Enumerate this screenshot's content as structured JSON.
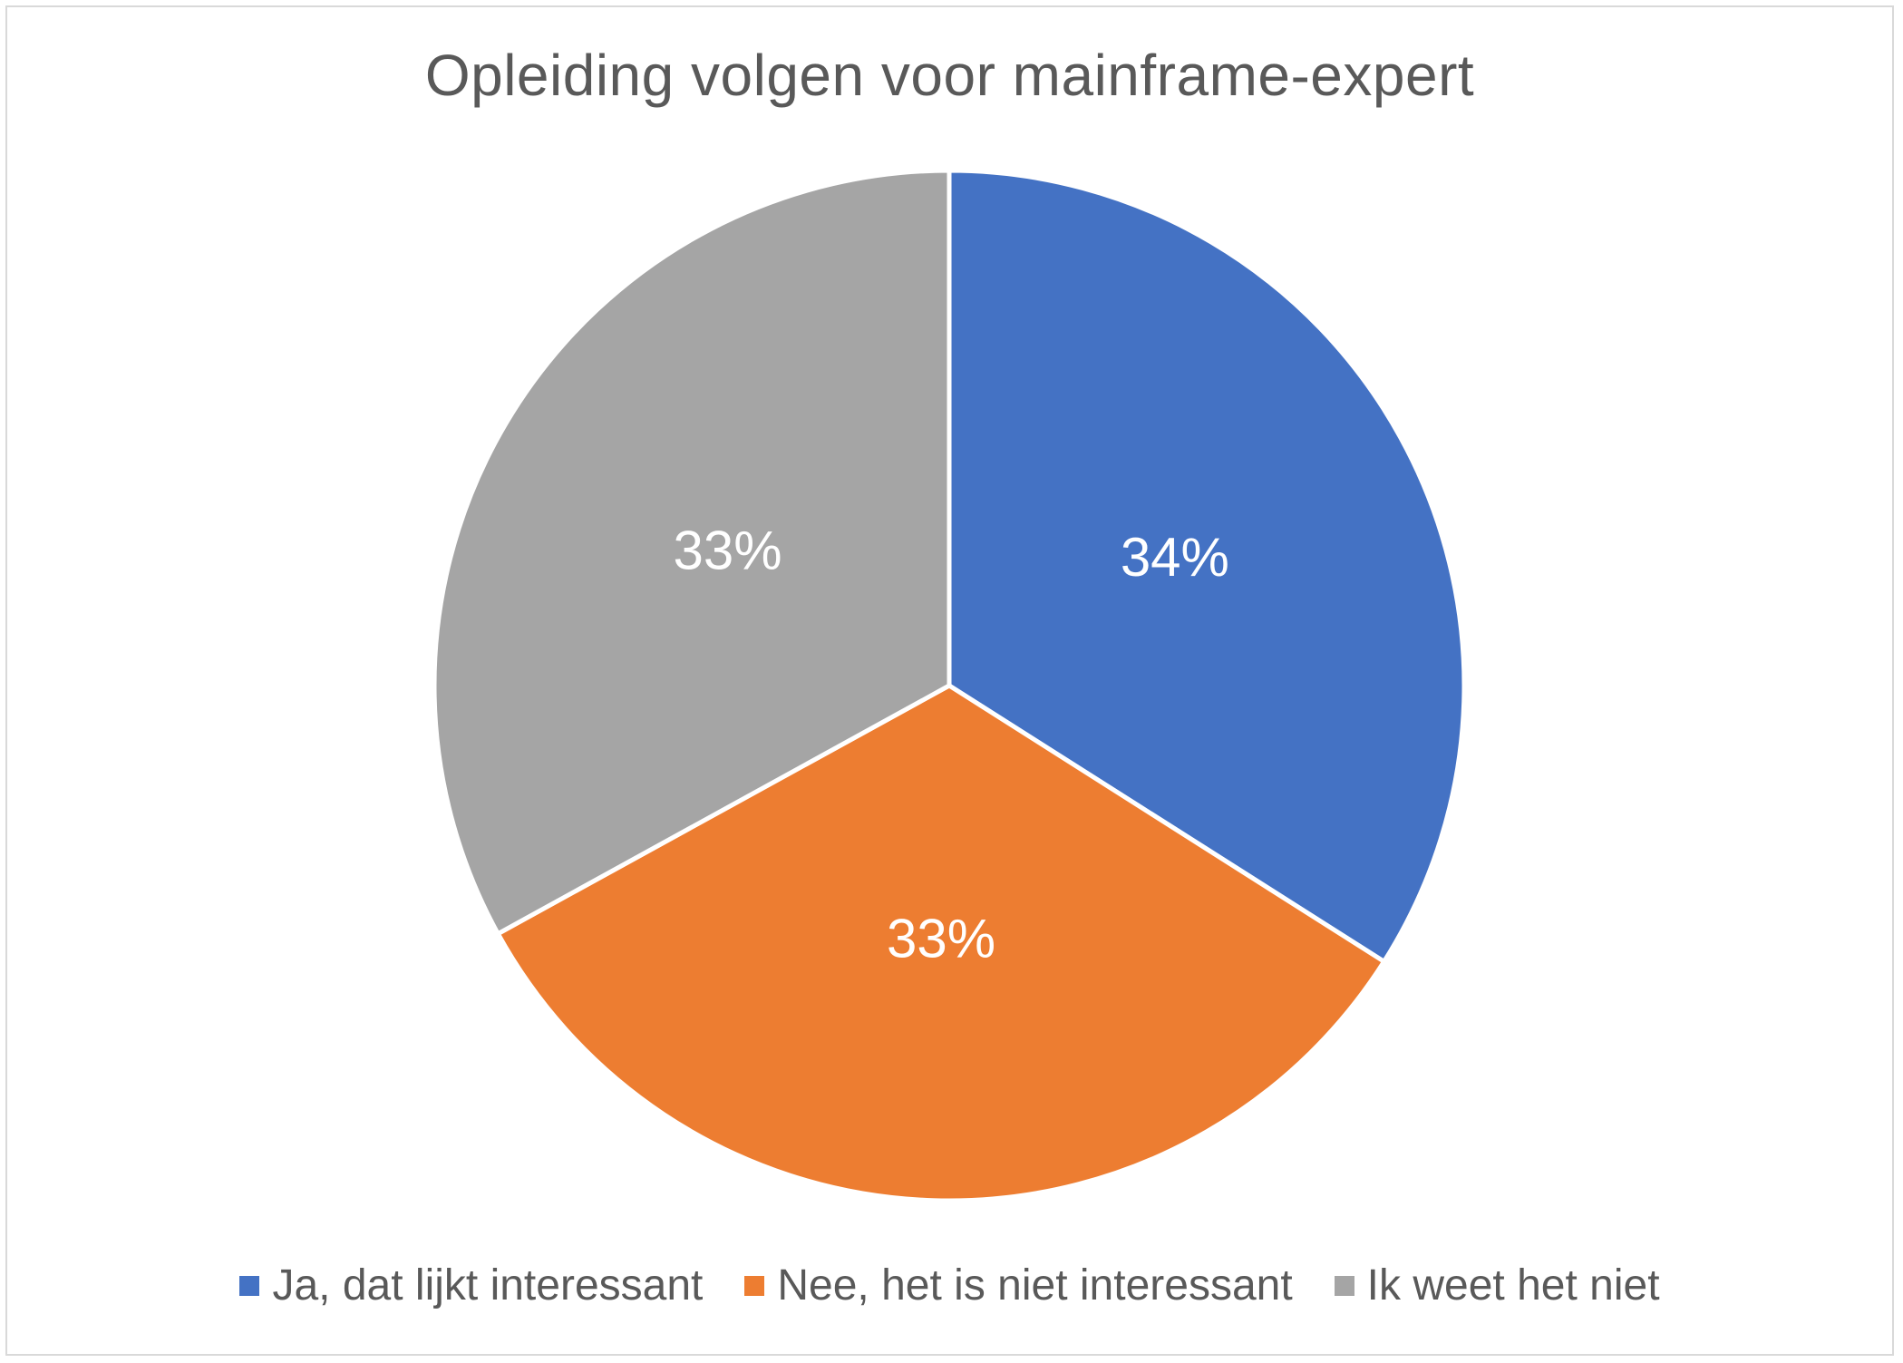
{
  "chart_data": {
    "type": "pie",
    "title": "Opleiding volgen voor mainframe-expert",
    "slices": [
      {
        "label": "Ja, dat lijkt interessant",
        "value": 34,
        "display": "34%",
        "color": "#4472c4"
      },
      {
        "label": "Nee, het is niet interessant",
        "value": 33,
        "display": "33%",
        "color": "#ed7d31"
      },
      {
        "label": "Ik weet het niet",
        "value": 33,
        "display": "33%",
        "color": "#a5a5a5"
      }
    ],
    "legend_position": "bottom",
    "start_angle": "12 o'clock",
    "direction": "clockwise"
  }
}
